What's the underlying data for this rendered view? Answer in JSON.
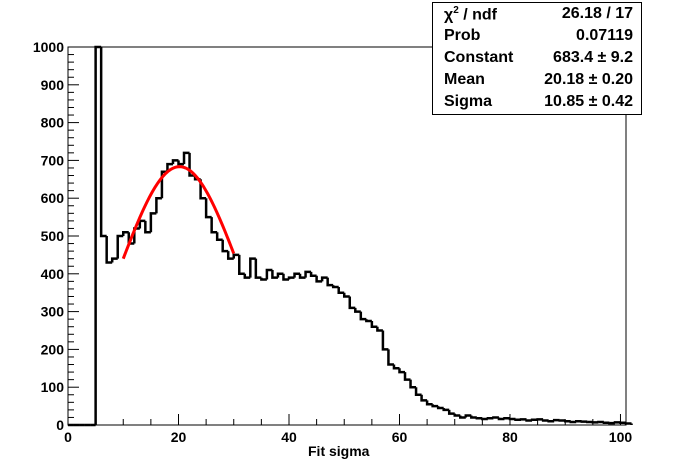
{
  "chart_data": {
    "type": "histogram",
    "title": "",
    "xlabel": "Fit sigma",
    "ylabel": "",
    "xlim": [
      0,
      101
    ],
    "ylim": [
      0,
      1000
    ],
    "x_ticks": [
      0,
      20,
      40,
      60,
      80,
      100
    ],
    "y_ticks": [
      0,
      100,
      200,
      300,
      400,
      500,
      600,
      700,
      800,
      900,
      1000
    ],
    "grid": false,
    "bin_width": 1,
    "histogram": {
      "bin_edges_start": 0,
      "values": [
        0,
        0,
        0,
        0,
        0,
        1000,
        500,
        430,
        440,
        500,
        510,
        480,
        520,
        540,
        510,
        560,
        600,
        670,
        690,
        700,
        690,
        720,
        660,
        650,
        600,
        550,
        510,
        490,
        460,
        440,
        450,
        400,
        390,
        440,
        390,
        385,
        410,
        390,
        400,
        385,
        390,
        400,
        390,
        405,
        395,
        380,
        390,
        370,
        365,
        350,
        340,
        310,
        300,
        280,
        275,
        260,
        250,
        200,
        160,
        150,
        140,
        120,
        100,
        80,
        65,
        55,
        50,
        45,
        40,
        30,
        25,
        20,
        25,
        20,
        18,
        16,
        18,
        20,
        16,
        18,
        16,
        14,
        15,
        12,
        14,
        15,
        12,
        10,
        13,
        12,
        10,
        8,
        10,
        9,
        8,
        7,
        8,
        6,
        5,
        7,
        6,
        4
      ]
    },
    "fit": {
      "name": "Gaussian fit",
      "color": "#ff0000",
      "constant": 683.4,
      "mean": 20.18,
      "sigma": 10.85,
      "range": [
        10,
        30
      ]
    },
    "stats": [
      {
        "label": "/ ndf",
        "symbol": "χ",
        "sup": "2",
        "value": "26.18 / 17"
      },
      {
        "label": "Prob",
        "value": "0.07119"
      },
      {
        "label": "Constant",
        "value": "683.4 ± 9.2"
      },
      {
        "label": "Mean",
        "value": "20.18 ± 0.20"
      },
      {
        "label": "Sigma",
        "value": "10.85 ± 0.42"
      }
    ]
  }
}
